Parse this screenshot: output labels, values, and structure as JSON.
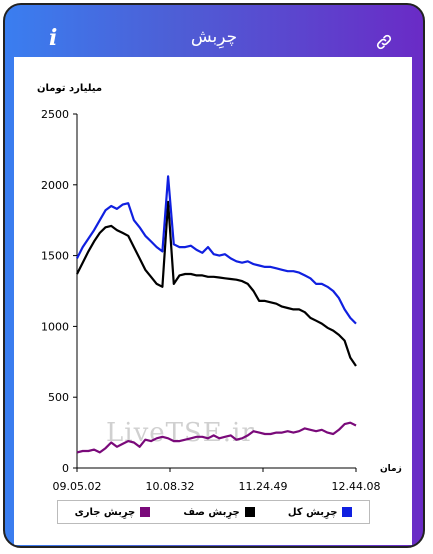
{
  "header": {
    "title": "چرِبش",
    "info_label": "i"
  },
  "chart_data": {
    "type": "line",
    "ylabel": "میلیارد تومان",
    "xlabel": "زمان",
    "ylim": [
      0,
      2500
    ],
    "yticks": [
      0,
      500,
      1000,
      1500,
      2000,
      2500
    ],
    "xtick_labels": [
      "09.05.02",
      "10.08.32",
      "11.24.49",
      "12.44.08"
    ],
    "watermark": "LiveTSE.ir",
    "series": [
      {
        "name": "چرِبش کل",
        "color": "#1020e0",
        "values": [
          1480,
          1560,
          1620,
          1680,
          1750,
          1820,
          1850,
          1830,
          1860,
          1870,
          1750,
          1700,
          1640,
          1600,
          1560,
          1530,
          2060,
          1580,
          1560,
          1560,
          1570,
          1540,
          1520,
          1560,
          1510,
          1500,
          1510,
          1480,
          1460,
          1450,
          1460,
          1440,
          1430,
          1420,
          1420,
          1410,
          1400,
          1390,
          1390,
          1380,
          1360,
          1340,
          1300,
          1300,
          1280,
          1250,
          1200,
          1120,
          1060,
          1020
        ]
      },
      {
        "name": "چرِبش صف",
        "color": "#000000",
        "values": [
          1370,
          1450,
          1530,
          1600,
          1660,
          1700,
          1710,
          1680,
          1660,
          1640,
          1560,
          1480,
          1400,
          1350,
          1300,
          1280,
          1880,
          1300,
          1360,
          1370,
          1370,
          1360,
          1360,
          1350,
          1350,
          1345,
          1340,
          1335,
          1330,
          1320,
          1300,
          1250,
          1180,
          1180,
          1170,
          1160,
          1140,
          1130,
          1120,
          1120,
          1100,
          1060,
          1040,
          1020,
          990,
          970,
          940,
          900,
          780,
          720
        ]
      },
      {
        "name": "چرِبش جاری",
        "color": "#7a0a7a",
        "values": [
          110,
          120,
          120,
          130,
          110,
          140,
          180,
          150,
          170,
          190,
          180,
          150,
          200,
          190,
          210,
          220,
          210,
          190,
          190,
          200,
          210,
          220,
          220,
          210,
          230,
          210,
          220,
          230,
          200,
          210,
          230,
          260,
          250,
          240,
          240,
          250,
          250,
          260,
          250,
          260,
          280,
          270,
          260,
          270,
          250,
          240,
          270,
          310,
          320,
          300
        ]
      }
    ]
  }
}
